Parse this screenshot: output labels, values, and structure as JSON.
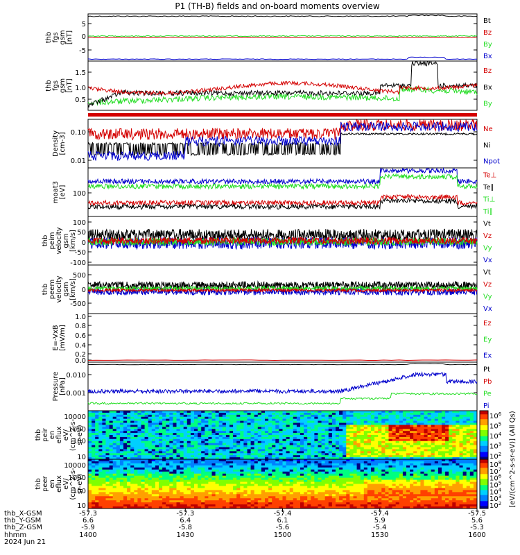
{
  "title": "P1 (TH-B) fields and on-board moments overview",
  "colors": {
    "black": "#000000",
    "red": "#d40000",
    "green": "#22dd22",
    "blue": "#0000cc"
  },
  "chart_data": [
    {
      "id": "p1",
      "type": "line",
      "ylabel": [
        "thb",
        "fgs",
        "gsm",
        "[nT]"
      ],
      "yticks": [
        "5",
        "0",
        "-5"
      ],
      "legend": [
        {
          "label": "Bt",
          "color": "#000000"
        },
        {
          "label": "Bz",
          "color": "#d40000"
        },
        {
          "label": "By",
          "color": "#22dd22"
        },
        {
          "label": "Bx",
          "color": "#0000cc"
        }
      ]
    },
    {
      "id": "p2",
      "type": "line",
      "ylabel": [
        "thb",
        "fgs",
        "gsm",
        "[nT]"
      ],
      "yticks": [
        "1.5",
        "1.0",
        "0.5"
      ],
      "legend": [
        {
          "label": "Bz",
          "color": "#d40000"
        },
        {
          "label": "Bx",
          "color": "#000000"
        },
        {
          "label": "By",
          "color": "#22dd22"
        }
      ]
    },
    {
      "id": "p3",
      "type": "line",
      "ylabel": [
        "Density",
        "[cm-3]"
      ],
      "yticks": [
        "0.10",
        "0.01"
      ],
      "legend": [
        {
          "label": "Ne",
          "color": "#d40000"
        },
        {
          "label": "Ni",
          "color": "#000000"
        },
        {
          "label": "Npot",
          "color": "#0000cc"
        }
      ]
    },
    {
      "id": "p4",
      "type": "line",
      "ylabel": [
        "moat3",
        "[eV]"
      ],
      "yticks": [
        "100"
      ],
      "legend": [
        {
          "label": "Te⊥",
          "color": "#d40000"
        },
        {
          "label": "Te∥",
          "color": "#000000"
        },
        {
          "label": "Ti⊥",
          "color": "#22dd22"
        },
        {
          "label": "Ti∥",
          "color": "#22dd22"
        }
      ]
    },
    {
      "id": "p5",
      "type": "line",
      "ylabel": [
        "thb",
        "peim",
        "velocity",
        "gsm",
        "[km/s]"
      ],
      "yticks": [
        "100",
        "50",
        "0",
        "-50",
        "-100"
      ],
      "legend": [
        {
          "label": "Vt",
          "color": "#000000"
        },
        {
          "label": "Vz",
          "color": "#d40000"
        },
        {
          "label": "Vy",
          "color": "#22dd22"
        },
        {
          "label": "Vx",
          "color": "#0000cc"
        }
      ]
    },
    {
      "id": "p6",
      "type": "line",
      "ylabel": [
        "thb",
        "peem",
        "velocity",
        "gsm",
        "[km/s]"
      ],
      "yticks": [
        "500",
        "0",
        "-500"
      ],
      "legend": [
        {
          "label": "Vt",
          "color": "#000000"
        },
        {
          "label": "Vz",
          "color": "#d40000"
        },
        {
          "label": "Vy",
          "color": "#22dd22"
        },
        {
          "label": "Vx",
          "color": "#0000cc"
        }
      ]
    },
    {
      "id": "p7",
      "type": "line",
      "ylabel": [
        "E=-VxB",
        "[mV/m]"
      ],
      "yticks": [
        "1.0",
        "0.8",
        "0.6",
        "0.4",
        "0.2",
        "0.0"
      ],
      "legend": [
        {
          "label": "Ez",
          "color": "#d40000"
        },
        {
          "label": "Ey",
          "color": "#22dd22"
        },
        {
          "label": "Ex",
          "color": "#0000cc"
        }
      ]
    },
    {
      "id": "p8",
      "type": "line",
      "ylabel": [
        "Pressure",
        "[nPa]"
      ],
      "yticks": [
        "0.010",
        "0.001"
      ],
      "legend": [
        {
          "label": "Pt",
          "color": "#000000"
        },
        {
          "label": "Pb",
          "color": "#d40000"
        },
        {
          "label": "Pe",
          "color": "#22dd22"
        },
        {
          "label": "Pi",
          "color": "#0000cc"
        }
      ]
    },
    {
      "id": "p9",
      "type": "heatmap",
      "ylabel": [
        "thb",
        "peir",
        "en",
        "eflux",
        "eV/",
        "(cm^2-s-",
        "sr-eV)"
      ],
      "yticks": [
        "10000",
        "1000",
        "100",
        "10"
      ],
      "colorbar_ticks": [
        "10^6",
        "10^5",
        "10^4",
        "10^3",
        "10^2"
      ]
    },
    {
      "id": "p10",
      "type": "heatmap",
      "ylabel": [
        "thb",
        "peer",
        "en",
        "eflux",
        "eV/",
        "(cm^2-s-",
        "sr-eV)"
      ],
      "yticks": [
        "10000",
        "1000",
        "100",
        "10"
      ],
      "colorbar_ticks": [
        "10^8",
        "10^7",
        "10^6",
        "10^5",
        "10^4",
        "10^3",
        "10^2"
      ]
    }
  ],
  "colorbar_label": "[eV/(cm^2-s-sr-eV)] (All Qs)",
  "xaxis": {
    "row_labels": [
      "thb_X-GSM",
      "thb_Y-GSM",
      "thb_Z-GSM",
      "hhmm",
      "2024 Jun 21"
    ],
    "rows": [
      [
        "-57.3",
        "-57.3",
        "-57.4",
        "-57.4",
        "-57.5"
      ],
      [
        "6.6",
        "6.4",
        "6.1",
        "5.9",
        "5.6"
      ],
      [
        "-5.9",
        "-5.8",
        "-5.6",
        "-5.4",
        "-5.3"
      ],
      [
        "1400",
        "1430",
        "1500",
        "1530",
        "1600"
      ]
    ]
  }
}
